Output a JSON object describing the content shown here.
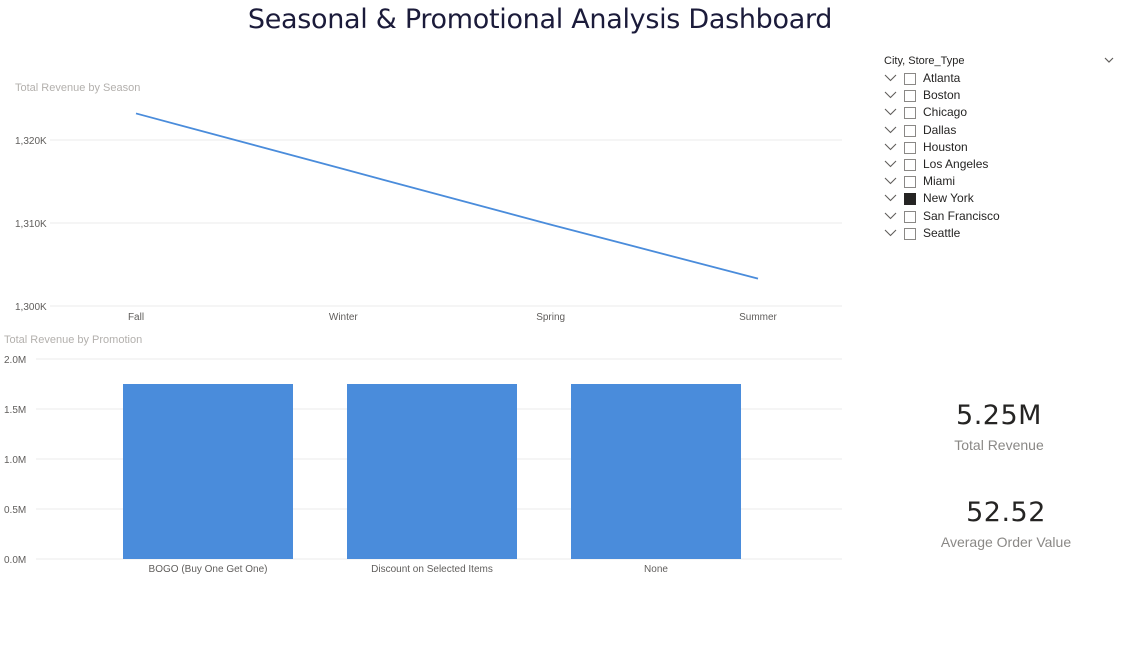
{
  "dashboard": {
    "title": "Seasonal & Promotional Analysis Dashboard"
  },
  "line_chart": {
    "visual_title": "Total Revenue by Season"
  },
  "bar_chart": {
    "visual_title": "Total Revenue by Promotion"
  },
  "slicer": {
    "header": "City, Store_Type",
    "items": [
      {
        "label": "Atlanta",
        "checked": false
      },
      {
        "label": "Boston",
        "checked": false
      },
      {
        "label": "Chicago",
        "checked": false
      },
      {
        "label": "Dallas",
        "checked": false
      },
      {
        "label": "Houston",
        "checked": false
      },
      {
        "label": "Los Angeles",
        "checked": false
      },
      {
        "label": "Miami",
        "checked": false
      },
      {
        "label": "New York",
        "checked": true
      },
      {
        "label": "San Francisco",
        "checked": false
      },
      {
        "label": "Seattle",
        "checked": false
      }
    ]
  },
  "kpis": {
    "total_revenue": {
      "value": "5.25M",
      "label": "Total Revenue"
    },
    "avg_order_value": {
      "value": "52.52",
      "label": "Average Order Value"
    }
  },
  "colors": {
    "series": "#4a8cdb",
    "grid": "#ebebeb"
  },
  "chart_data": [
    {
      "type": "line",
      "title": "Total Revenue by Season",
      "categories": [
        "Fall",
        "Winter",
        "Spring",
        "Summer"
      ],
      "values": [
        1323200,
        1316500,
        1309800,
        1303300
      ],
      "ylim": [
        1300000,
        1320000
      ],
      "yticks": [
        1300000,
        1310000,
        1320000
      ],
      "ytick_labels": [
        "1,300K",
        "1,310K",
        "1,320K"
      ],
      "grid": true
    },
    {
      "type": "bar",
      "title": "Total Revenue by Promotion",
      "categories": [
        "BOGO (Buy One Get One)",
        "Discount on Selected Items",
        "None"
      ],
      "values": [
        1750000,
        1750000,
        1750000
      ],
      "ylim": [
        0,
        2000000
      ],
      "yticks": [
        0,
        500000,
        1000000,
        1500000,
        2000000
      ],
      "ytick_labels": [
        "0.0M",
        "0.5M",
        "1.0M",
        "1.5M",
        "2.0M"
      ],
      "grid": true
    }
  ]
}
